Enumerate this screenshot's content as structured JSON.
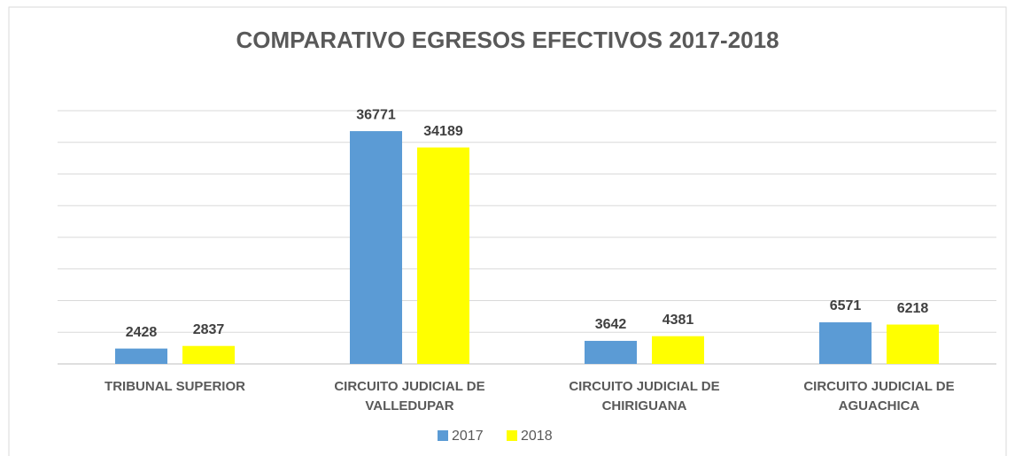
{
  "chart_data": {
    "type": "bar",
    "title": "COMPARATIVO EGRESOS EFECTIVOS 2017-2018",
    "categories": [
      "TRIBUNAL SUPERIOR",
      "CIRCUITO JUDICIAL DE VALLEDUPAR",
      "CIRCUITO JUDICIAL DE CHIRIGUANA",
      "CIRCUITO JUDICIAL DE AGUACHICA"
    ],
    "series": [
      {
        "name": "2017",
        "color": "#5b9bd5",
        "values": [
          2428,
          36771,
          3642,
          6571
        ]
      },
      {
        "name": "2018",
        "color": "#ffff00",
        "values": [
          2837,
          34189,
          4381,
          6218
        ]
      }
    ],
    "ylim": [
      0,
      40000
    ],
    "yticks": [
      0,
      5000,
      10000,
      15000,
      20000,
      25000,
      30000,
      35000,
      40000
    ],
    "grid": true,
    "legend": "bottom"
  }
}
